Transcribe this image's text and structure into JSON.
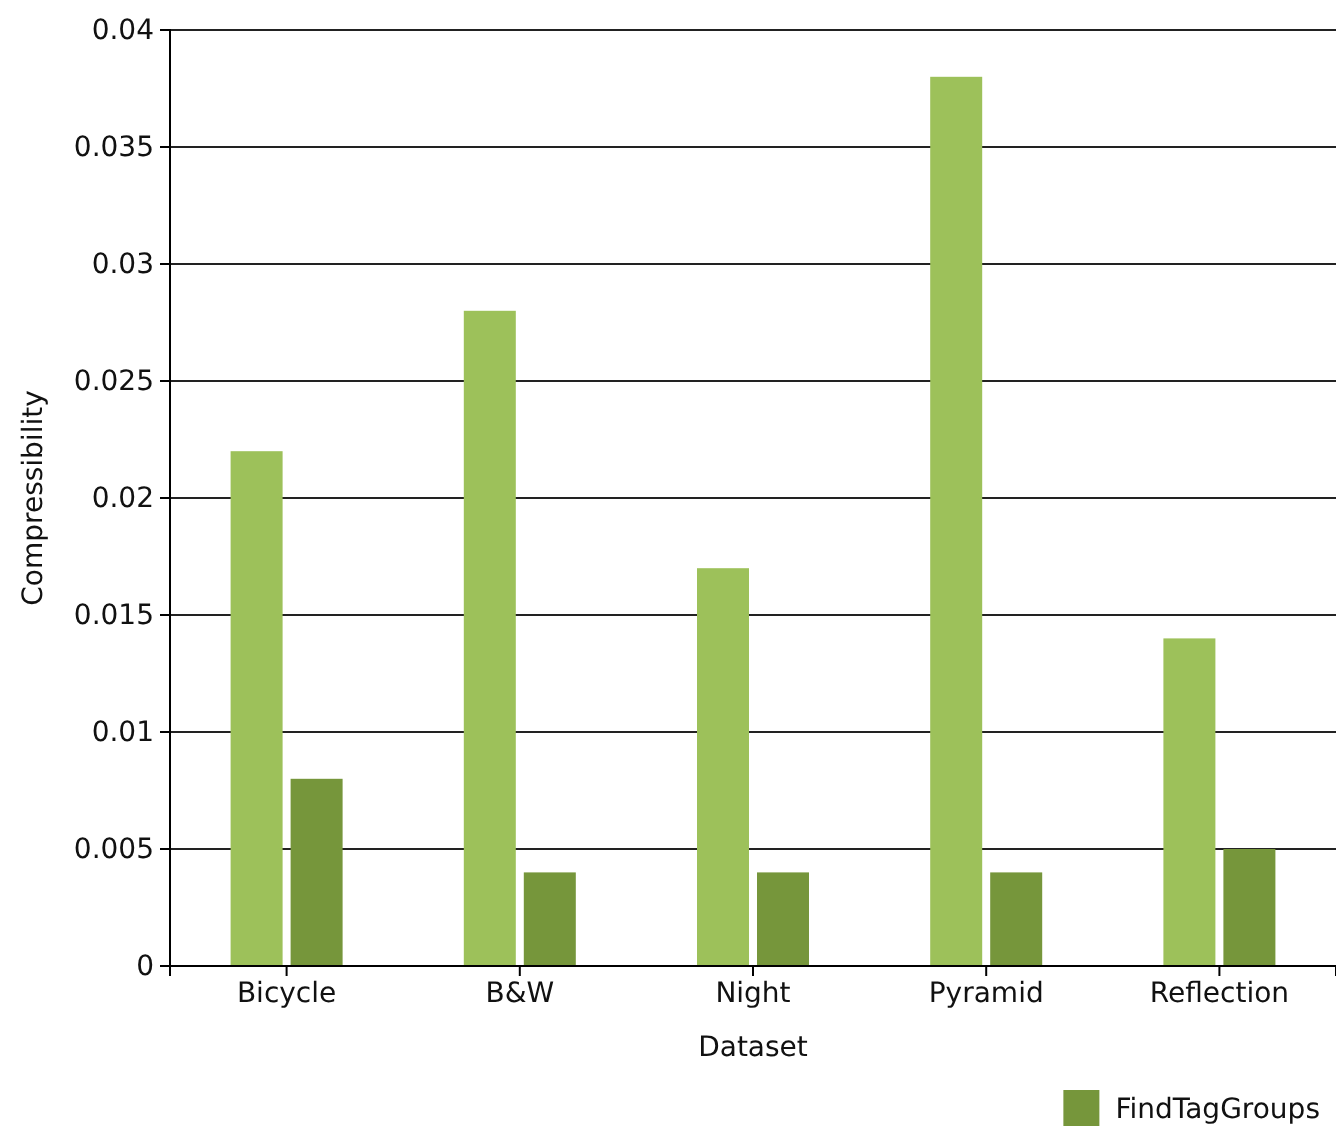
{
  "chart_data": {
    "type": "bar",
    "xlabel": "Dataset",
    "ylabel": "Compressibility",
    "categories": [
      "Bicycle",
      "B&W",
      "Night",
      "Pyramid",
      "Reflection"
    ],
    "series": [
      {
        "color": "#9dc15a",
        "values": [
          0.022,
          0.028,
          0.017,
          0.038,
          0.014
        ]
      },
      {
        "name": "FindTagGroups",
        "color": "#76963b",
        "values": [
          0.008,
          0.004,
          0.004,
          0.004,
          0.005
        ]
      }
    ],
    "ylim": [
      0,
      0.04
    ],
    "yticks": [
      0,
      0.005,
      0.01,
      0.015,
      0.02,
      0.025,
      0.03,
      0.035,
      0.04
    ],
    "grid": "y",
    "legend": "bottom right"
  }
}
